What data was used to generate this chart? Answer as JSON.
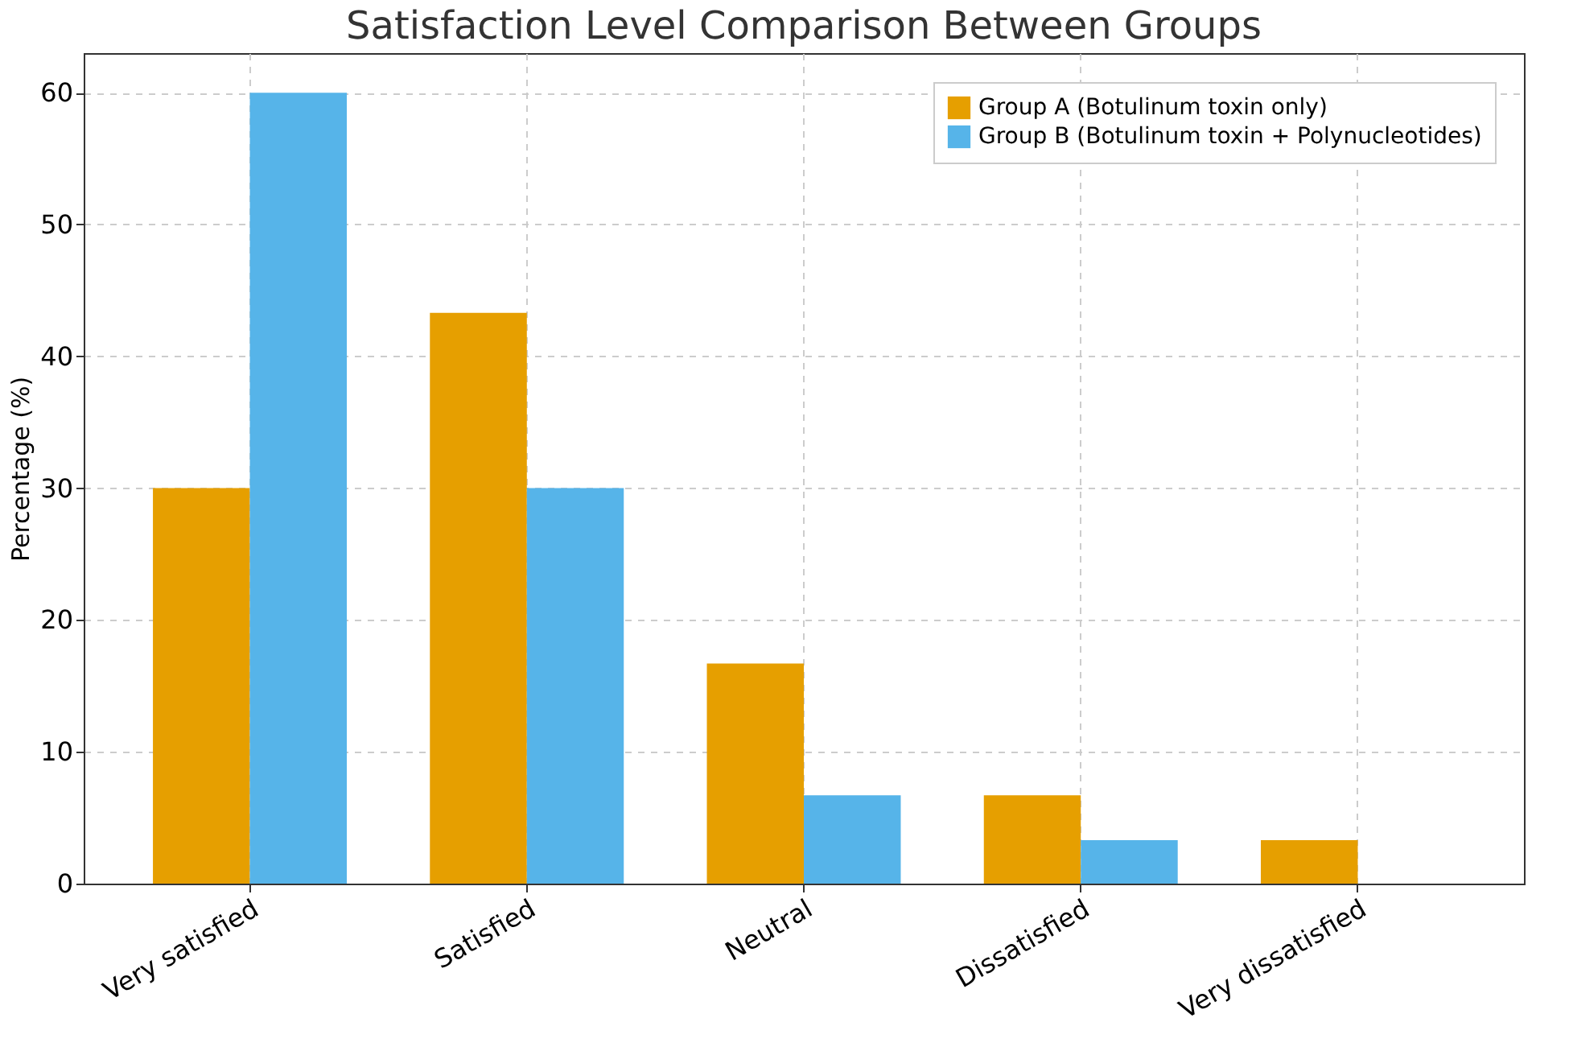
{
  "chart_data": {
    "type": "bar",
    "title": "Satisfaction Level Comparison Between Groups",
    "ylabel": "Percentage (%)",
    "categories": [
      "Very satisfied",
      "Satisfied",
      "Neutral",
      "Dissatisfied",
      "Very dissatisfied"
    ],
    "series": [
      {
        "name": "Group A (Botulinum toxin only)",
        "color": "#e69f00",
        "values": [
          30,
          43.3,
          16.7,
          6.7,
          3.3
        ]
      },
      {
        "name": "Group B (Botulinum toxin + Polynucleotides)",
        "color": "#56b4e9",
        "values": [
          60,
          30,
          6.7,
          3.3,
          0
        ]
      }
    ],
    "ylim": [
      0,
      63
    ],
    "yticks": [
      0,
      10,
      20,
      30,
      40,
      50,
      60
    ],
    "grid": true,
    "legend": "top right"
  }
}
